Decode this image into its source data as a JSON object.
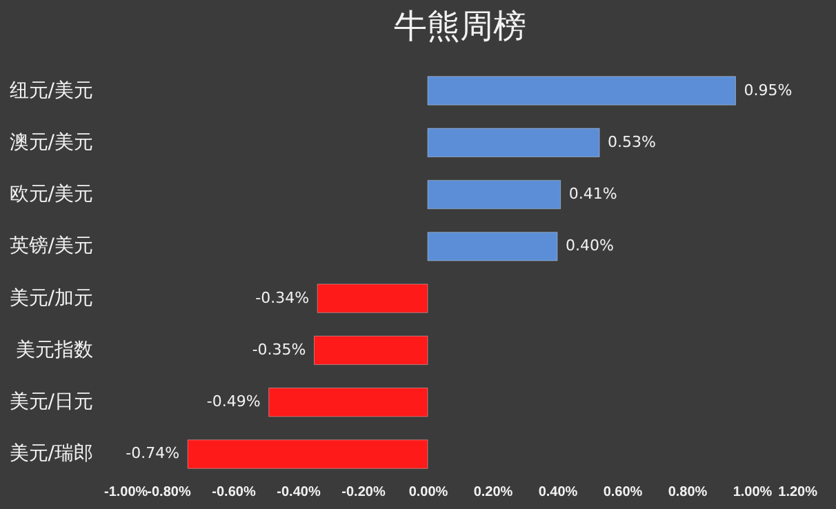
{
  "chart_data": {
    "type": "bar",
    "orientation": "horizontal",
    "title": "牛熊周榜",
    "categories": [
      "纽元/美元",
      "澳元/美元",
      "欧元/美元",
      "英镑/美元",
      "美元/加元",
      "美元指数",
      "美元/日元",
      "美元/瑞郎"
    ],
    "values": [
      0.95,
      0.53,
      0.41,
      0.4,
      -0.34,
      -0.35,
      -0.49,
      -0.74
    ],
    "colors": [
      "#5b8ed6",
      "#5b8ed6",
      "#5b8ed6",
      "#5b8ed6",
      "#ff1a1a",
      "#ff1a1a",
      "#ff1a1a",
      "#ff1a1a"
    ],
    "value_labels": [
      "0.95%",
      "0.53%",
      "0.41%",
      "0.40%",
      "-0.34%",
      "-0.35%",
      "-0.49%",
      "-0.74%"
    ],
    "xlim": [
      -1.0,
      1.2
    ],
    "xticks": [
      {
        "value": -1.0,
        "label": "-1.00%"
      },
      {
        "value": -0.8,
        "label": "-0.80%"
      },
      {
        "value": -0.6,
        "label": "-0.60%"
      },
      {
        "value": -0.4,
        "label": "-0.40%"
      },
      {
        "value": -0.2,
        "label": "-0.20%"
      },
      {
        "value": 0,
        "label": "0.00%"
      },
      {
        "value": 0.2,
        "label": "0.20%"
      },
      {
        "value": 0.4,
        "label": "0.40%"
      },
      {
        "value": 0.6,
        "label": "0.60%"
      },
      {
        "value": 0.8,
        "label": "0.80%"
      },
      {
        "value": 1.0,
        "label": "1.00%"
      },
      {
        "value": 1.2,
        "label": "1.20%"
      }
    ],
    "grid": false
  }
}
